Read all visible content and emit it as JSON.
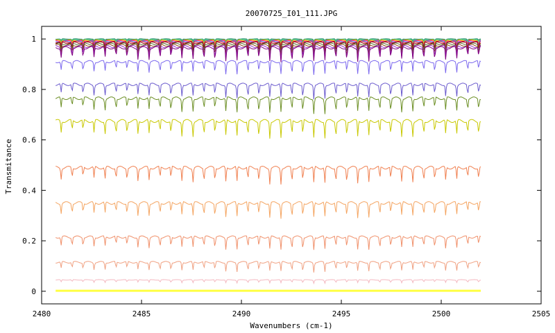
{
  "chart_data": {
    "type": "line",
    "title": "20070725_I01_111.JPG",
    "xlabel": "Wavenumbers (cm-1)",
    "ylabel": "Transmitance",
    "xlim": [
      2480,
      2505
    ],
    "ylim": [
      -0.05,
      1.05
    ],
    "x_ticks": [
      2480,
      2485,
      2490,
      2495,
      2500,
      2505
    ],
    "y_ticks": [
      0,
      0.2,
      0.4,
      0.6,
      0.8,
      1
    ],
    "x_tick_labels": [
      "2480",
      "2485",
      "2490",
      "2495",
      "2500",
      "2505"
    ],
    "y_tick_labels": [
      "0",
      "0.2",
      "0.4",
      "0.6",
      "0.8",
      "1"
    ],
    "grid": false,
    "legend": "none",
    "x_range_data": [
      2480.7,
      2502.0
    ],
    "line_period_cm1": 0.55,
    "series": [
      {
        "baseline": 1.0,
        "dip_depth": 0.01,
        "color": "#2e8b57"
      },
      {
        "baseline": 0.998,
        "dip_depth": 0.015,
        "color": "#20b2aa"
      },
      {
        "baseline": 0.996,
        "dip_depth": 0.02,
        "color": "#9acd32"
      },
      {
        "baseline": 0.994,
        "dip_depth": 0.025,
        "color": "#ff8c00"
      },
      {
        "baseline": 0.992,
        "dip_depth": 0.03,
        "color": "#ff1493"
      },
      {
        "baseline": 0.99,
        "dip_depth": 0.035,
        "color": "#4169e1"
      },
      {
        "baseline": 0.988,
        "dip_depth": 0.04,
        "color": "#dc143c"
      },
      {
        "baseline": 0.985,
        "dip_depth": 0.045,
        "color": "#8b0000"
      },
      {
        "baseline": 0.98,
        "dip_depth": 0.05,
        "color": "#556b2f"
      },
      {
        "baseline": 0.975,
        "dip_depth": 0.055,
        "color": "#8b4513"
      },
      {
        "baseline": 0.97,
        "dip_depth": 0.06,
        "color": "#9932cc"
      },
      {
        "baseline": 0.965,
        "dip_depth": 0.065,
        "color": "#800080"
      },
      {
        "baseline": 0.91,
        "dip_depth": 0.06,
        "color": "#7b68ee"
      },
      {
        "baseline": 0.82,
        "dip_depth": 0.065,
        "color": "#6a5acd"
      },
      {
        "baseline": 0.765,
        "dip_depth": 0.07,
        "color": "#6b8e23"
      },
      {
        "baseline": 0.675,
        "dip_depth": 0.08,
        "color": "#c8c800"
      },
      {
        "baseline": 0.49,
        "dip_depth": 0.075,
        "color": "#f08050"
      },
      {
        "baseline": 0.35,
        "dip_depth": 0.07,
        "color": "#f4a460"
      },
      {
        "baseline": 0.215,
        "dip_depth": 0.06,
        "color": "#f0906a"
      },
      {
        "baseline": 0.115,
        "dip_depth": 0.045,
        "color": "#f0a080"
      },
      {
        "baseline": 0.045,
        "dip_depth": 0.015,
        "color": "#f4b8c0"
      },
      {
        "baseline": 0.002,
        "dip_depth": 0.0,
        "color": "#ffff40"
      }
    ]
  }
}
